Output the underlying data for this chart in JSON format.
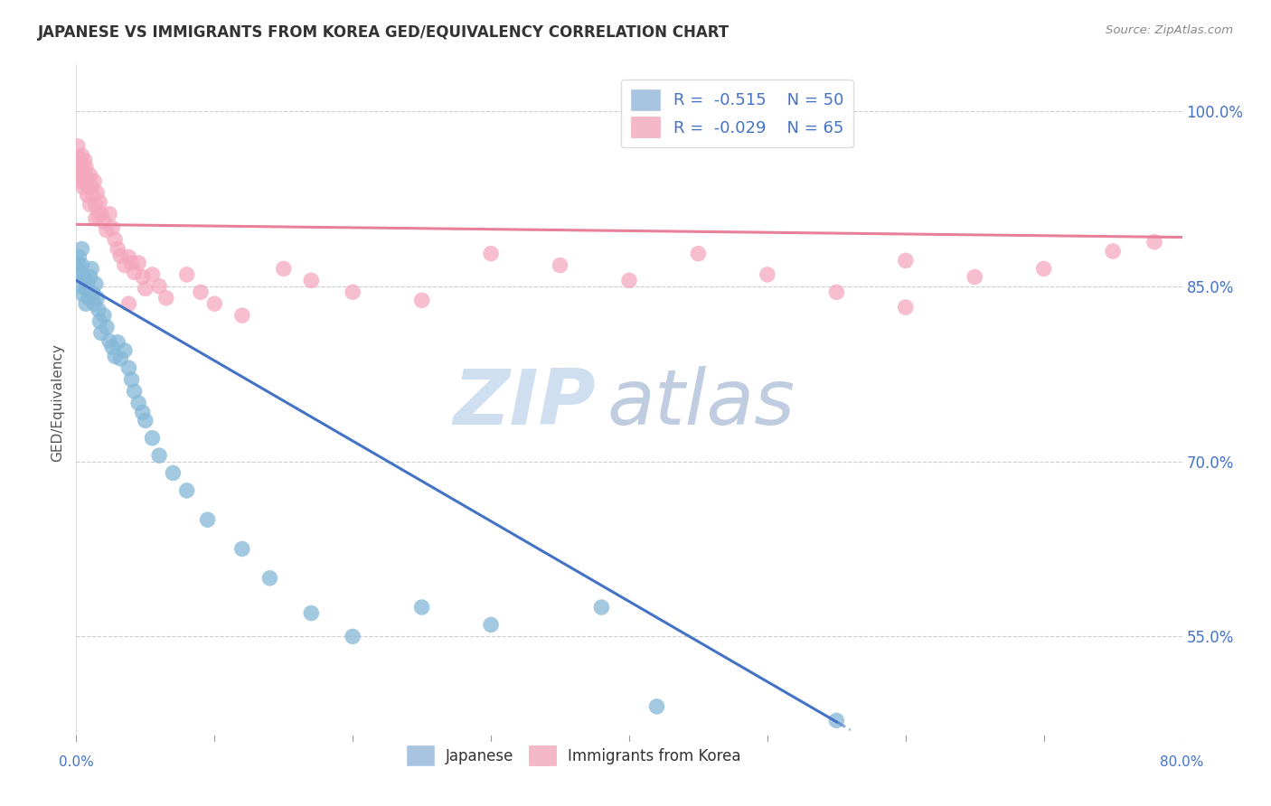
{
  "title": "JAPANESE VS IMMIGRANTS FROM KOREA GED/EQUIVALENCY CORRELATION CHART",
  "source": "Source: ZipAtlas.com",
  "ylabel": "GED/Equivalency",
  "ytick_vals": [
    0.55,
    0.7,
    0.85,
    1.0
  ],
  "ytick_labels": [
    "55.0%",
    "70.0%",
    "85.0%",
    "100.0%"
  ],
  "legend_top": [
    {
      "label": "R = -0.515   N = 50",
      "color": "#a8c4e0"
    },
    {
      "label": "R = -0.029   N = 65",
      "color": "#f4b8c8"
    }
  ],
  "legend_bottom": [
    "Japanese",
    "Immigrants from Korea"
  ],
  "japanese_color": "#85b8d8",
  "korean_color": "#f4a8be",
  "trendline_jp_color": "#4472c4",
  "trendline_kr_color": "#e8809a",
  "watermark_color": "#d0dff0",
  "xlim": [
    0.0,
    0.8
  ],
  "ylim": [
    0.46,
    1.04
  ],
  "bg_color": "#ffffff",
  "grid_color": "#cccccc",
  "jp_trendline_x0": 0.0,
  "jp_trendline_y0": 0.855,
  "jp_trendline_x1": 0.56,
  "jp_trendline_y1": 0.47,
  "jp_trendline_solid_end": 0.55,
  "kr_trendline_x0": 0.0,
  "kr_trendline_y0": 0.903,
  "kr_trendline_x1": 0.8,
  "kr_trendline_y1": 0.892,
  "japanese_points": [
    [
      0.001,
      0.87
    ],
    [
      0.002,
      0.875
    ],
    [
      0.002,
      0.863
    ],
    [
      0.003,
      0.85
    ],
    [
      0.004,
      0.882
    ],
    [
      0.004,
      0.868
    ],
    [
      0.005,
      0.86
    ],
    [
      0.005,
      0.843
    ],
    [
      0.006,
      0.856
    ],
    [
      0.007,
      0.848
    ],
    [
      0.007,
      0.835
    ],
    [
      0.008,
      0.852
    ],
    [
      0.009,
      0.84
    ],
    [
      0.01,
      0.858
    ],
    [
      0.011,
      0.865
    ],
    [
      0.012,
      0.844
    ],
    [
      0.013,
      0.835
    ],
    [
      0.014,
      0.852
    ],
    [
      0.015,
      0.84
    ],
    [
      0.016,
      0.83
    ],
    [
      0.017,
      0.82
    ],
    [
      0.018,
      0.81
    ],
    [
      0.02,
      0.825
    ],
    [
      0.022,
      0.815
    ],
    [
      0.024,
      0.803
    ],
    [
      0.026,
      0.798
    ],
    [
      0.028,
      0.79
    ],
    [
      0.03,
      0.802
    ],
    [
      0.032,
      0.788
    ],
    [
      0.035,
      0.795
    ],
    [
      0.038,
      0.78
    ],
    [
      0.04,
      0.77
    ],
    [
      0.042,
      0.76
    ],
    [
      0.045,
      0.75
    ],
    [
      0.048,
      0.742
    ],
    [
      0.05,
      0.735
    ],
    [
      0.055,
      0.72
    ],
    [
      0.06,
      0.705
    ],
    [
      0.07,
      0.69
    ],
    [
      0.08,
      0.675
    ],
    [
      0.095,
      0.65
    ],
    [
      0.12,
      0.625
    ],
    [
      0.14,
      0.6
    ],
    [
      0.17,
      0.57
    ],
    [
      0.2,
      0.55
    ],
    [
      0.25,
      0.575
    ],
    [
      0.3,
      0.56
    ],
    [
      0.38,
      0.575
    ],
    [
      0.42,
      0.49
    ],
    [
      0.55,
      0.478
    ]
  ],
  "korean_points": [
    [
      0.001,
      0.97
    ],
    [
      0.002,
      0.96
    ],
    [
      0.002,
      0.945
    ],
    [
      0.003,
      0.955
    ],
    [
      0.003,
      0.94
    ],
    [
      0.004,
      0.962
    ],
    [
      0.004,
      0.95
    ],
    [
      0.005,
      0.948
    ],
    [
      0.005,
      0.935
    ],
    [
      0.006,
      0.958
    ],
    [
      0.006,
      0.94
    ],
    [
      0.007,
      0.952
    ],
    [
      0.007,
      0.938
    ],
    [
      0.008,
      0.942
    ],
    [
      0.008,
      0.928
    ],
    [
      0.009,
      0.935
    ],
    [
      0.01,
      0.945
    ],
    [
      0.01,
      0.92
    ],
    [
      0.011,
      0.935
    ],
    [
      0.012,
      0.928
    ],
    [
      0.013,
      0.94
    ],
    [
      0.014,
      0.92
    ],
    [
      0.014,
      0.908
    ],
    [
      0.015,
      0.93
    ],
    [
      0.016,
      0.91
    ],
    [
      0.017,
      0.922
    ],
    [
      0.018,
      0.912
    ],
    [
      0.02,
      0.905
    ],
    [
      0.022,
      0.898
    ],
    [
      0.024,
      0.912
    ],
    [
      0.026,
      0.9
    ],
    [
      0.028,
      0.89
    ],
    [
      0.03,
      0.882
    ],
    [
      0.032,
      0.876
    ],
    [
      0.035,
      0.868
    ],
    [
      0.038,
      0.875
    ],
    [
      0.04,
      0.87
    ],
    [
      0.042,
      0.862
    ],
    [
      0.045,
      0.87
    ],
    [
      0.048,
      0.858
    ],
    [
      0.05,
      0.848
    ],
    [
      0.055,
      0.86
    ],
    [
      0.06,
      0.85
    ],
    [
      0.065,
      0.84
    ],
    [
      0.08,
      0.86
    ],
    [
      0.09,
      0.845
    ],
    [
      0.1,
      0.835
    ],
    [
      0.12,
      0.825
    ],
    [
      0.15,
      0.865
    ],
    [
      0.17,
      0.855
    ],
    [
      0.2,
      0.845
    ],
    [
      0.25,
      0.838
    ],
    [
      0.3,
      0.878
    ],
    [
      0.35,
      0.868
    ],
    [
      0.4,
      0.855
    ],
    [
      0.45,
      0.878
    ],
    [
      0.5,
      0.86
    ],
    [
      0.55,
      0.845
    ],
    [
      0.6,
      0.872
    ],
    [
      0.65,
      0.858
    ],
    [
      0.7,
      0.865
    ],
    [
      0.75,
      0.88
    ],
    [
      0.78,
      0.888
    ],
    [
      0.038,
      0.835
    ],
    [
      0.6,
      0.832
    ]
  ]
}
